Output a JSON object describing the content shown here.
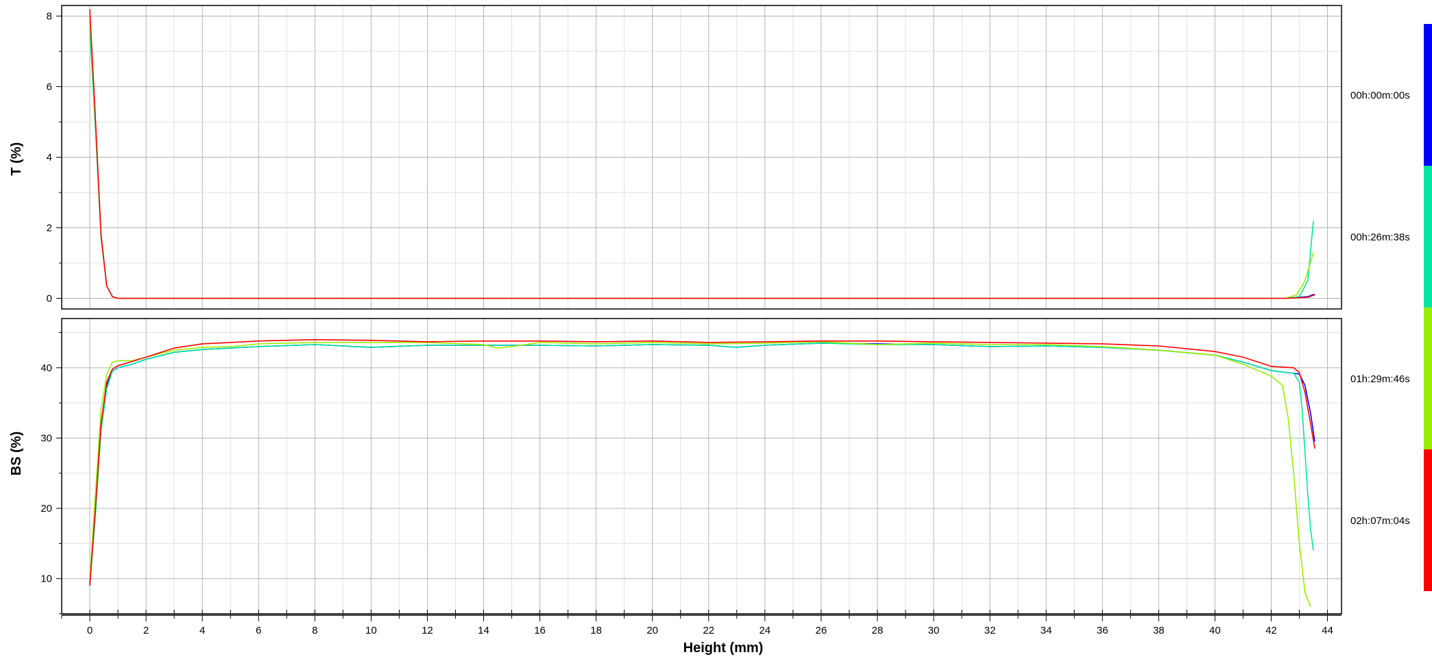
{
  "chart_data": {
    "type": "line",
    "xlabel": "Height (mm)",
    "xlim": [
      -1,
      44.5
    ],
    "xticks": [
      0,
      2,
      4,
      6,
      8,
      10,
      12,
      14,
      16,
      18,
      20,
      22,
      24,
      26,
      28,
      30,
      32,
      34,
      36,
      38,
      40,
      42,
      44
    ],
    "grid": true,
    "legend_placement": "right",
    "panels": [
      {
        "id": "transmission",
        "ylabel": "T (%)",
        "ylim": [
          -0.3,
          8.3
        ],
        "yticks": [
          0,
          2,
          4,
          6,
          8
        ],
        "series": [
          {
            "color": "#0000ff",
            "x": [
              0,
              0.2,
              0.4,
              0.6,
              0.8,
              1.0,
              2,
              10,
              20,
              30,
              40,
              42.5,
              43.3,
              43.55
            ],
            "y": [
              8.0,
              5.0,
              1.8,
              0.35,
              0.05,
              0.0,
              0.0,
              0.0,
              0.0,
              0.0,
              0.0,
              0.0,
              0.05,
              0.12
            ]
          },
          {
            "color": "#00e6a0",
            "x": [
              0,
              0.2,
              0.4,
              0.6,
              0.8,
              1.0,
              2,
              10,
              20,
              30,
              40,
              42.5,
              43.0,
              43.3,
              43.5
            ],
            "y": [
              7.6,
              4.8,
              1.7,
              0.35,
              0.05,
              0.0,
              0.0,
              0.0,
              0.0,
              0.0,
              0.0,
              0.0,
              0.05,
              0.5,
              2.2
            ]
          },
          {
            "color": "#99ee00",
            "x": [
              0,
              0.2,
              0.4,
              0.6,
              0.8,
              1.0,
              2,
              10,
              20,
              30,
              40,
              42.5,
              42.9,
              43.2,
              43.5
            ],
            "y": [
              8.0,
              5.0,
              1.8,
              0.35,
              0.05,
              0.0,
              0.0,
              0.0,
              0.0,
              0.0,
              0.0,
              0.0,
              0.1,
              0.5,
              1.3
            ]
          },
          {
            "color": "#ff0000",
            "x": [
              0,
              0.2,
              0.4,
              0.6,
              0.8,
              1.0,
              2,
              10,
              20,
              30,
              40,
              42.5,
              43.3,
              43.55
            ],
            "y": [
              8.2,
              5.1,
              1.8,
              0.35,
              0.05,
              0.0,
              0.0,
              0.0,
              0.0,
              0.0,
              0.0,
              0.0,
              0.03,
              0.1
            ]
          }
        ]
      },
      {
        "id": "backscattering",
        "ylabel": "BS (%)",
        "ylim": [
          5,
          47
        ],
        "yticks": [
          10,
          20,
          30,
          40
        ],
        "series": [
          {
            "color": "#0000ff",
            "x": [
              0,
              0.2,
              0.4,
              0.6,
              0.8,
              1.0,
              1.5,
              2,
              3,
              4,
              5,
              6,
              8,
              10,
              12,
              14,
              16,
              18,
              20,
              22,
              23,
              24,
              26,
              28,
              30,
              32,
              34,
              36,
              38,
              40,
              41,
              42,
              42.8,
              43.0,
              43.2,
              43.4,
              43.55
            ],
            "y": [
              9.5,
              20,
              32,
              37.5,
              39.5,
              40.0,
              40.5,
              41.2,
              42.2,
              42.6,
              42.8,
              43.0,
              43.3,
              42.9,
              43.2,
              43.2,
              43.2,
              43.1,
              43.3,
              43.2,
              42.9,
              43.2,
              43.5,
              43.4,
              43.3,
              43.0,
              43.1,
              42.9,
              42.5,
              41.8,
              40.8,
              39.6,
              39.2,
              39.1,
              37.5,
              33.5,
              29.5
            ]
          },
          {
            "color": "#00e6a0",
            "x": [
              0,
              0.2,
              0.4,
              0.6,
              0.8,
              1.0,
              1.5,
              2,
              3,
              4,
              5,
              6,
              8,
              10,
              12,
              14,
              16,
              18,
              20,
              22,
              23,
              24,
              26,
              28,
              30,
              32,
              34,
              36,
              38,
              40,
              41,
              42,
              42.8,
              43.0,
              43.1,
              43.2,
              43.3,
              43.4,
              43.5
            ],
            "y": [
              9.0,
              19,
              31,
              37,
              39.5,
              40.0,
              40.5,
              41.2,
              42.2,
              42.6,
              42.8,
              43.0,
              43.3,
              42.9,
              43.2,
              43.2,
              43.2,
              43.1,
              43.3,
              43.2,
              42.9,
              43.2,
              43.5,
              43.3,
              43.3,
              43.0,
              43.1,
              42.9,
              42.5,
              41.8,
              40.8,
              39.6,
              39.2,
              38.0,
              34,
              28,
              22,
              17,
              14
            ]
          },
          {
            "color": "#99ee00",
            "x": [
              0,
              0.2,
              0.4,
              0.6,
              0.8,
              1.0,
              1.5,
              2,
              3,
              4,
              5,
              6,
              8,
              10,
              12,
              14,
              14.5,
              15,
              16,
              18,
              20,
              22,
              24,
              26,
              28,
              30,
              32,
              34,
              36,
              38,
              40,
              41,
              42,
              42.4,
              42.6,
              42.8,
              43.0,
              43.2,
              43.4
            ],
            "y": [
              10,
              22,
              34,
              39,
              40.8,
              41.0,
              41.0,
              41.5,
              42.5,
              42.9,
              43.0,
              43.4,
              43.6,
              43.6,
              43.6,
              43.3,
              42.8,
              43.0,
              43.6,
              43.4,
              43.6,
              43.4,
              43.5,
              43.7,
              43.3,
              43.5,
              43.3,
              43.3,
              43.0,
              42.5,
              41.8,
              40.5,
              38.8,
              37.5,
              33,
              25,
              15,
              8,
              6
            ]
          },
          {
            "color": "#ff0000",
            "x": [
              0,
              0.2,
              0.4,
              0.6,
              0.8,
              1.0,
              1.5,
              2,
              3,
              4,
              5,
              6,
              8,
              10,
              12,
              14,
              16,
              18,
              20,
              22,
              24,
              26,
              28,
              30,
              32,
              34,
              36,
              38,
              40,
              41,
              42,
              42.8,
              43.0,
              43.2,
              43.4,
              43.55
            ],
            "y": [
              9.0,
              20,
              32,
              38,
              39.8,
              40.3,
              40.9,
              41.5,
              42.8,
              43.4,
              43.6,
              43.8,
              44.0,
              43.9,
              43.7,
              43.8,
              43.8,
              43.7,
              43.8,
              43.6,
              43.7,
              43.8,
              43.8,
              43.7,
              43.6,
              43.5,
              43.4,
              43.1,
              42.3,
              41.5,
              40.2,
              40.0,
              39.3,
              36.5,
              32,
              28.5
            ]
          }
        ]
      }
    ],
    "legend": [
      {
        "label": "00h:00m:00s",
        "color": "#0000ff"
      },
      {
        "label": "00h:26m:38s",
        "color": "#00e6a0"
      },
      {
        "label": "01h:29m:46s",
        "color": "#99ee00"
      },
      {
        "label": "02h:07m:04s",
        "color": "#ff0000"
      }
    ]
  }
}
